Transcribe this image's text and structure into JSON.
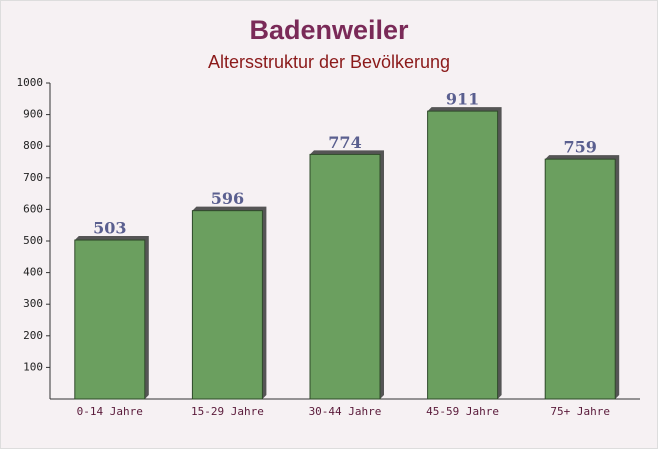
{
  "chart_data": {
    "type": "bar",
    "title": "Badenweiler",
    "subtitle": "Altersstruktur der Bevölkerung",
    "categories": [
      "0-14 Jahre",
      "15-29 Jahre",
      "30-44 Jahre",
      "45-59 Jahre",
      "75+ Jahre"
    ],
    "values": [
      503,
      596,
      774,
      911,
      759
    ],
    "color": "#6b9f5f",
    "ylim": [
      0,
      1000
    ],
    "yticks": [
      100,
      200,
      300,
      400,
      500,
      600,
      700,
      800,
      900,
      1000
    ],
    "grid": false
  }
}
